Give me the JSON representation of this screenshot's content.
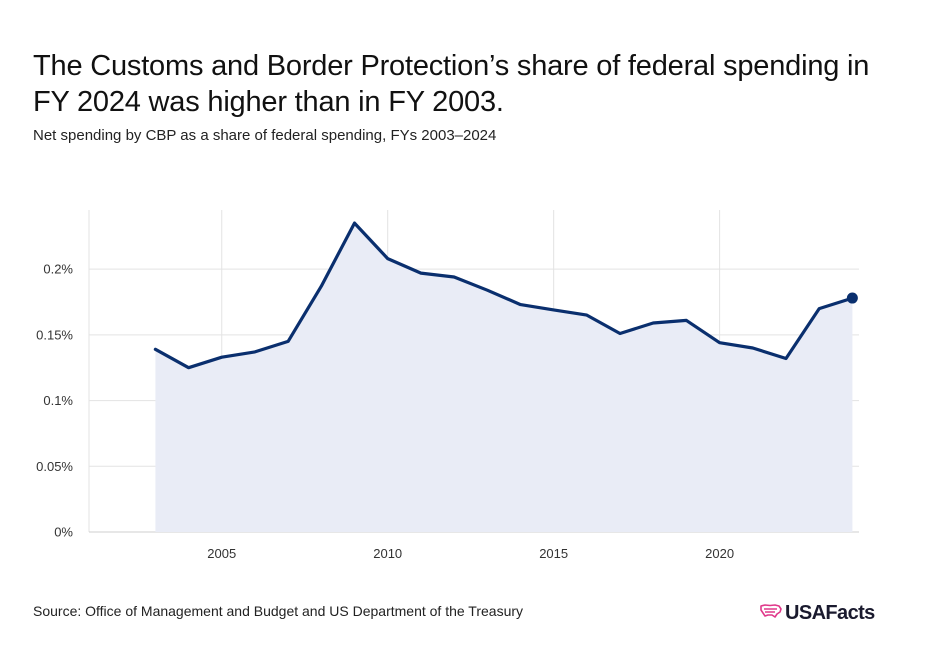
{
  "header": {
    "title": "The Customs and Border Protection’s share of federal spending in FY 2024 was higher than in FY 2003.",
    "subtitle": "Net spending by CBP as a share of federal spending, FYs 2003–2024"
  },
  "footer": {
    "source": "Source: Office of Management and Budget and US Department of the Treasury",
    "logo_text": "USAFacts",
    "logo_icon": "us-map-icon"
  },
  "colors": {
    "line": "#0a2f6e",
    "area": "#e9ecf6",
    "grid": "#e3e3e3",
    "logo_icon": "#e0388a"
  },
  "chart_data": {
    "type": "area",
    "title": "The Customs and Border Protection’s share of federal spending in FY 2024 was higher than in FY 2003.",
    "subtitle": "Net spending by CBP as a share of federal spending, FYs 2003–2024",
    "xlabel": "",
    "ylabel": "",
    "x": [
      2003,
      2004,
      2005,
      2006,
      2007,
      2008,
      2009,
      2010,
      2011,
      2012,
      2013,
      2014,
      2015,
      2016,
      2017,
      2018,
      2019,
      2020,
      2021,
      2022,
      2023,
      2024
    ],
    "series": [
      {
        "values": [
          0.139,
          0.125,
          0.133,
          0.137,
          0.145,
          0.187,
          0.235,
          0.208,
          0.197,
          0.194,
          0.184,
          0.173,
          0.169,
          0.165,
          0.151,
          0.159,
          0.161,
          0.144,
          0.14,
          0.132,
          0.17,
          0.178
        ]
      }
    ],
    "xlim": [
      2001,
      2024.2
    ],
    "ylim": [
      0,
      0.245
    ],
    "x_ticks": [
      2005,
      2010,
      2015,
      2020
    ],
    "x_tick_labels": [
      "2005",
      "2010",
      "2015",
      "2020"
    ],
    "y_ticks": [
      0,
      0.05,
      0.1,
      0.15,
      0.2
    ],
    "y_tick_labels": [
      "0%",
      "0.05%",
      "0.1%",
      "0.15%",
      "0.2%"
    ],
    "grid": true,
    "legend": "none",
    "endpoint_marker": true
  }
}
